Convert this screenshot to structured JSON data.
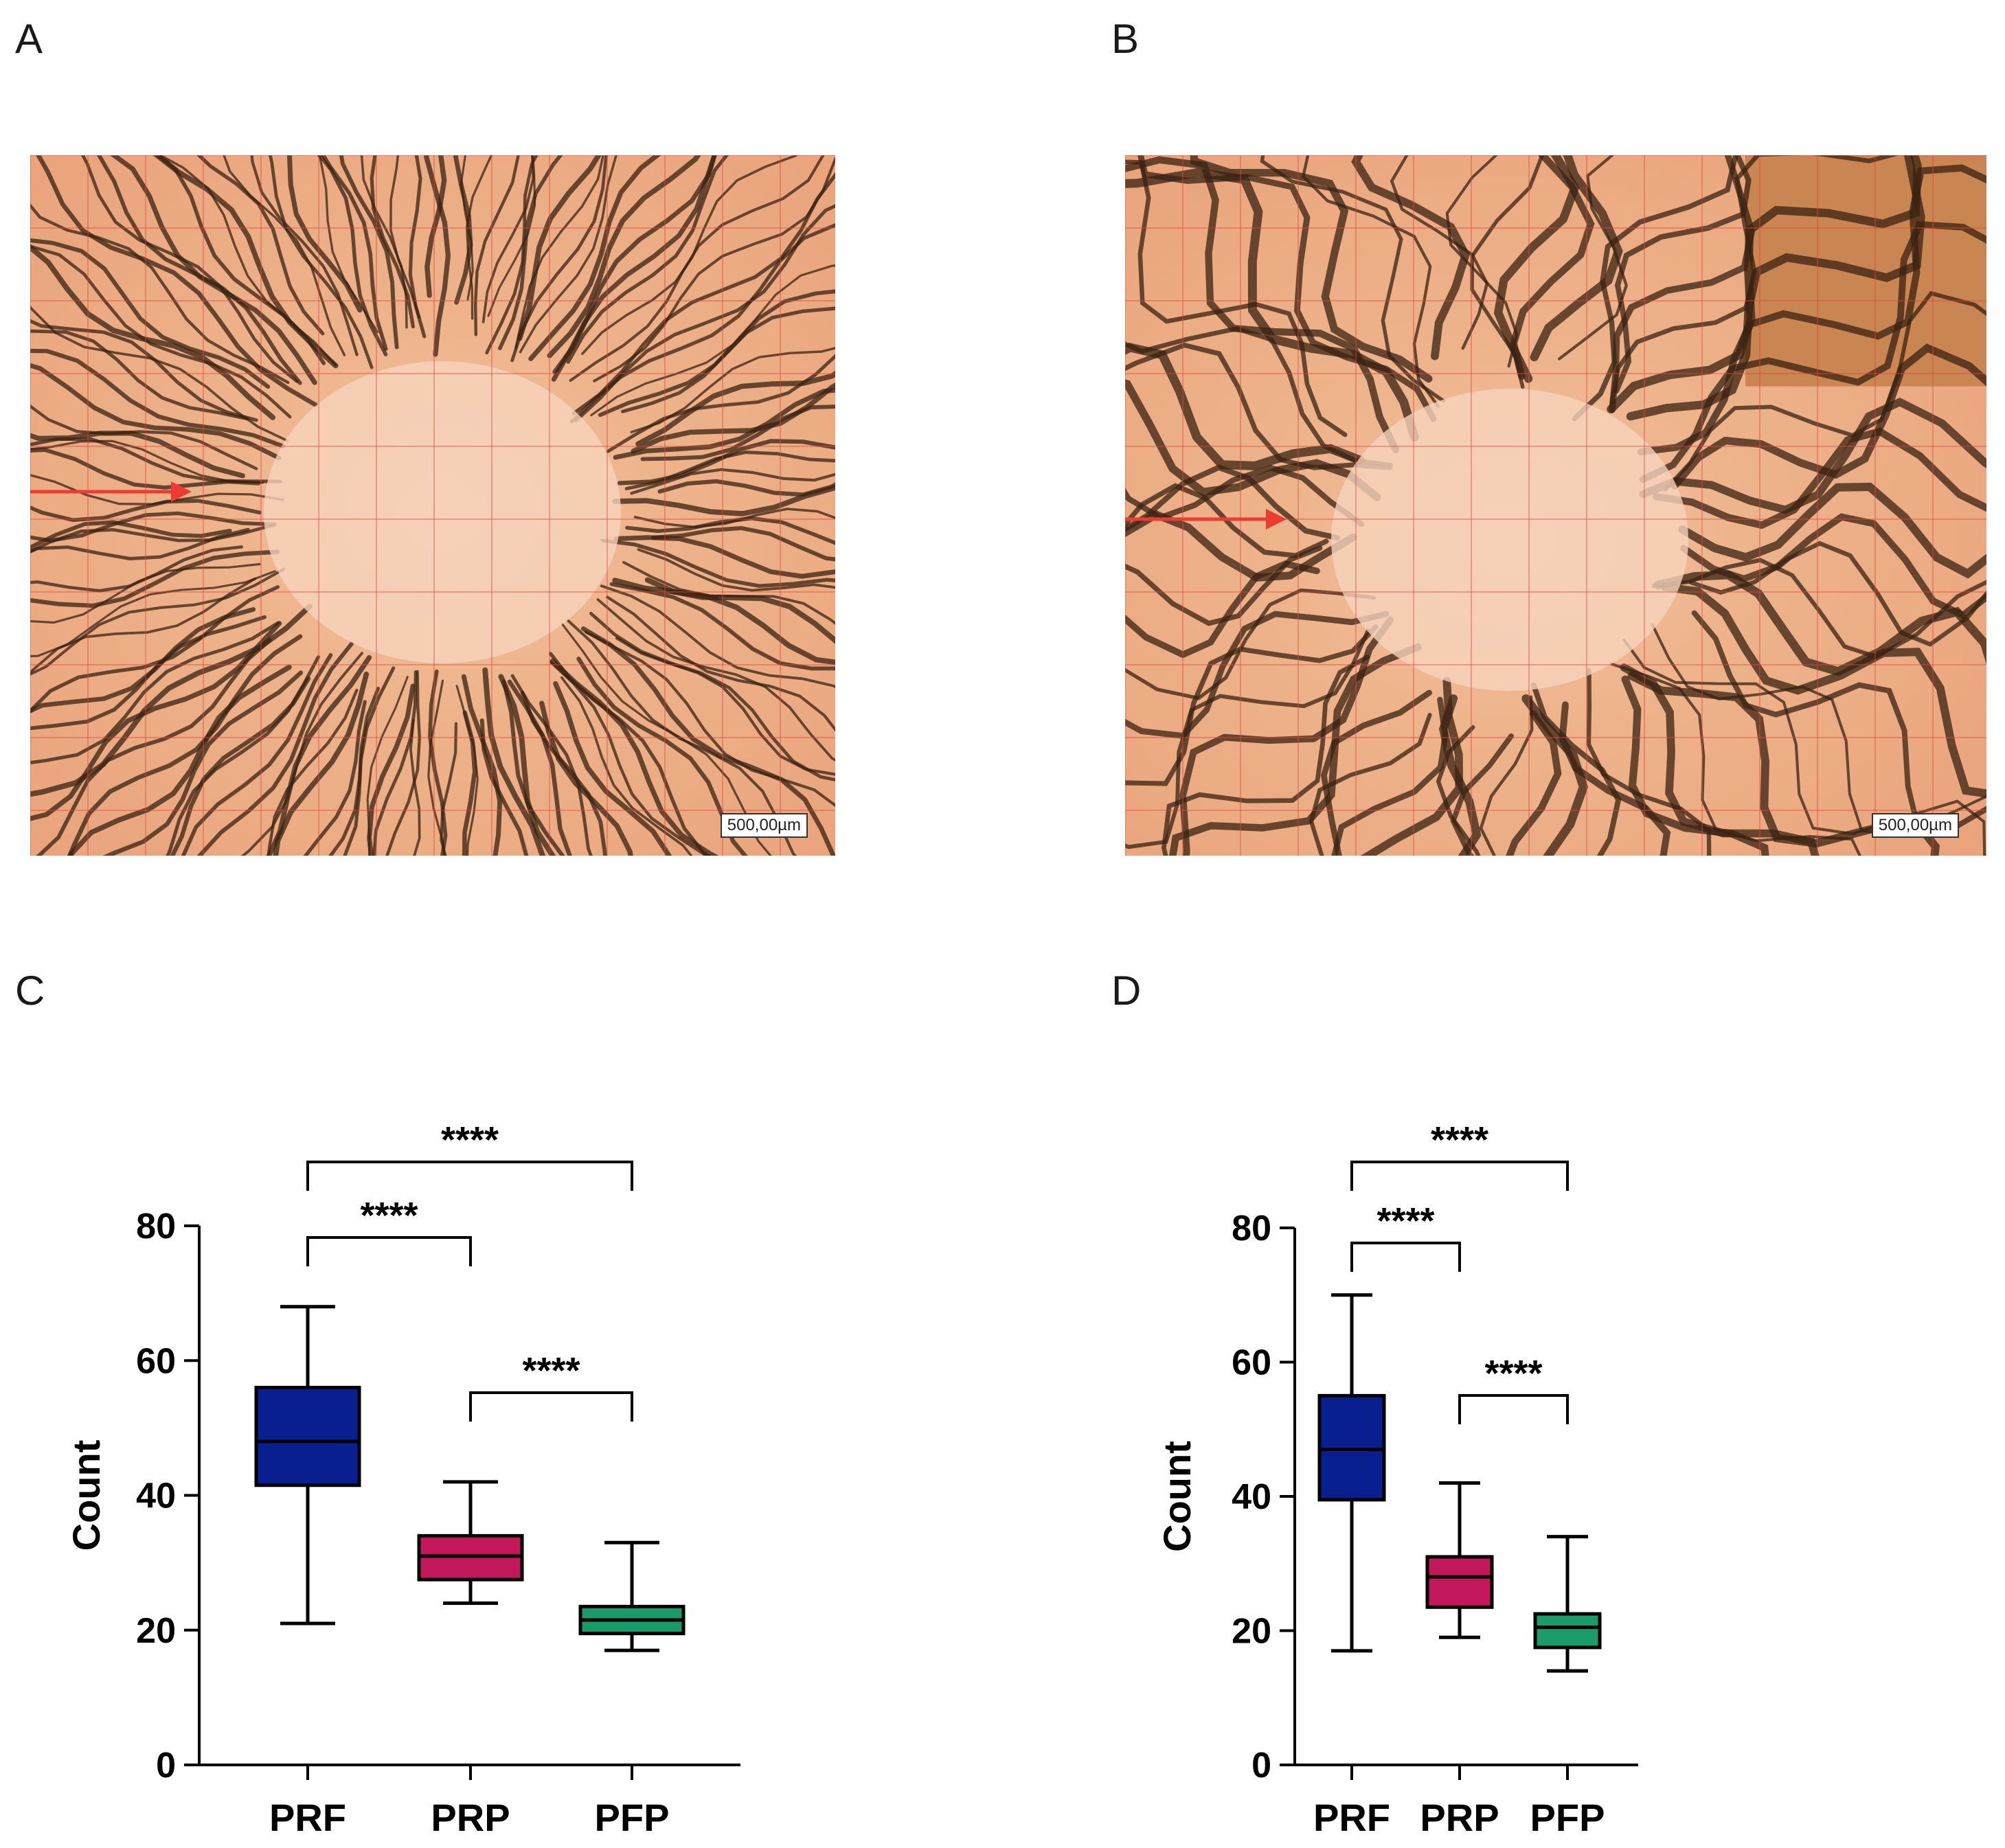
{
  "panels": {
    "a": {
      "label": "A",
      "scale_label": "500,00µm"
    },
    "b": {
      "label": "B",
      "scale_label": "500,00µm"
    },
    "c": {
      "label": "C"
    },
    "d": {
      "label": "D"
    }
  },
  "colors": {
    "prf": "#0a1f8f",
    "prp": "#c2185b",
    "pfp": "#1a9b6c",
    "tissue_base": "#e9a27a",
    "tissue_line": "#3a2212",
    "grid": "#e0473f",
    "arrow": "#ec3b30"
  },
  "chart_data": [
    {
      "type": "box",
      "panel": "C",
      "title": "",
      "xlabel": "",
      "ylabel": "Count",
      "ylim": [
        0,
        80
      ],
      "yticks": [
        0,
        20,
        40,
        60,
        80
      ],
      "categories": [
        "PRF",
        "PRP",
        "PFP"
      ],
      "boxes": [
        {
          "name": "PRF",
          "min": 21,
          "q1": 41.5,
          "median": 48,
          "q3": 56,
          "max": 68
        },
        {
          "name": "PRP",
          "min": 24,
          "q1": 27.5,
          "median": 31,
          "q3": 34,
          "max": 42
        },
        {
          "name": "PFP",
          "min": 17,
          "q1": 19.5,
          "median": 21.5,
          "q3": 23.5,
          "max": 33
        }
      ],
      "significance": [
        {
          "from": 0,
          "to": 2,
          "label": "****"
        },
        {
          "from": 0,
          "to": 1,
          "label": "****"
        },
        {
          "from": 1,
          "to": 2,
          "label": "****"
        }
      ]
    },
    {
      "type": "box",
      "panel": "D",
      "title": "",
      "xlabel": "",
      "ylabel": "Count",
      "ylim": [
        0,
        80
      ],
      "yticks": [
        0,
        20,
        40,
        60,
        80
      ],
      "categories": [
        "PRF",
        "PRP",
        "PFP"
      ],
      "boxes": [
        {
          "name": "PRF",
          "min": 17,
          "q1": 39.5,
          "median": 47,
          "q3": 55,
          "max": 70
        },
        {
          "name": "PRP",
          "min": 19,
          "q1": 23.5,
          "median": 28,
          "q3": 31,
          "max": 42
        },
        {
          "name": "PFP",
          "min": 14,
          "q1": 17.5,
          "median": 20.5,
          "q3": 22.5,
          "max": 34
        }
      ],
      "significance": [
        {
          "from": 0,
          "to": 2,
          "label": "****"
        },
        {
          "from": 0,
          "to": 1,
          "label": "****"
        },
        {
          "from": 1,
          "to": 2,
          "label": "****"
        }
      ]
    }
  ]
}
